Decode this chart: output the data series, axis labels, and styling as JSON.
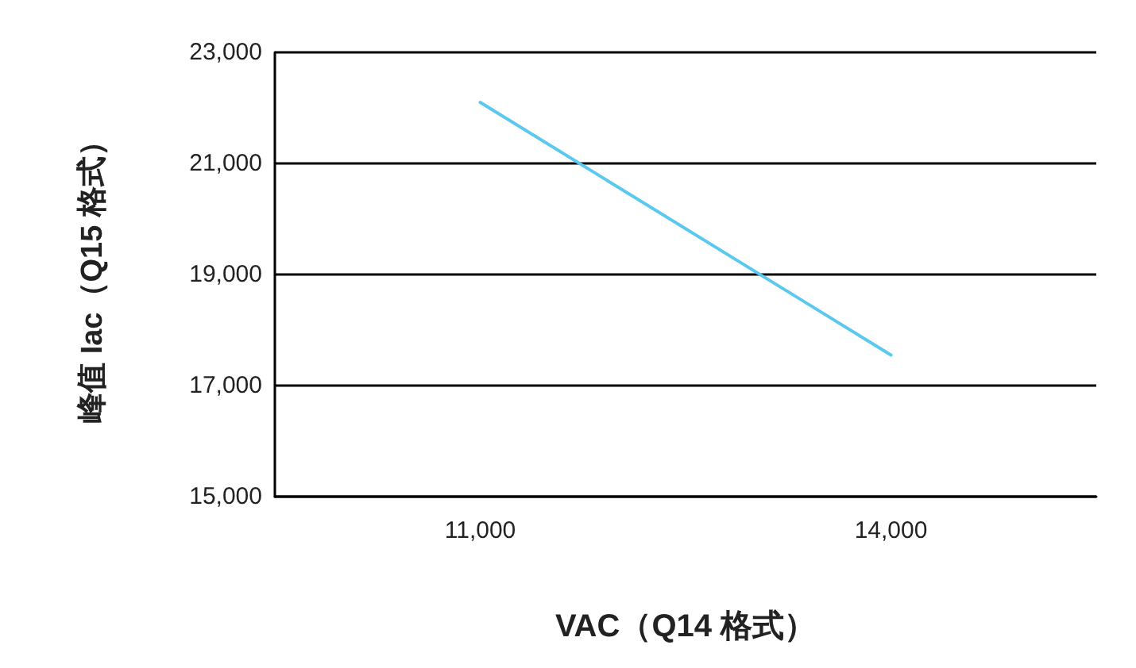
{
  "chart_data": {
    "type": "line",
    "xlabel": "VAC（Q14 格式）",
    "ylabel": "峰值 Iac（Q15 格式）",
    "categories": [
      "11,000",
      "14,000"
    ],
    "series": [
      {
        "color": "#5bc8ef",
        "values": [
          22100,
          17550
        ]
      }
    ],
    "ylim": [
      15000,
      23000
    ],
    "yticks": [
      {
        "value": 15000,
        "label": "15,000"
      },
      {
        "value": 17000,
        "label": "17,000"
      },
      {
        "value": 19000,
        "label": "19,000"
      },
      {
        "value": 21000,
        "label": "21,000"
      },
      {
        "value": 23000,
        "label": "23,000"
      }
    ],
    "grid": "y",
    "marker": "none",
    "line_style": "solid"
  }
}
